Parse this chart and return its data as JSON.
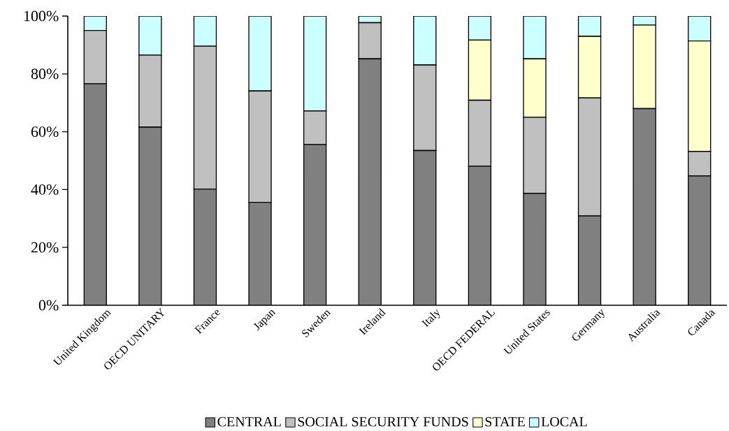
{
  "chart_data": {
    "type": "bar",
    "stacked": true,
    "categories": [
      "United Kingdom",
      "OECD UNITARY",
      "France",
      "Japan",
      "Sweden",
      "Ireland",
      "Italy",
      "OECD FEDERAL",
      "United States",
      "Germany",
      "Australia",
      "Canada"
    ],
    "series": [
      {
        "name": "CENTRAL",
        "color": "#808080",
        "values": [
          76.6,
          61.6,
          40.2,
          35.6,
          55.6,
          85.2,
          53.5,
          48.1,
          38.7,
          30.9,
          68.0,
          44.7
        ]
      },
      {
        "name": "SOCIAL SECURITY FUNDS",
        "color": "#c0c0c0",
        "values": [
          18.4,
          24.9,
          49.4,
          38.5,
          11.6,
          12.5,
          29.6,
          22.8,
          26.3,
          40.8,
          0,
          8.5
        ]
      },
      {
        "name": "STATE",
        "color": "#ffffcc",
        "values": [
          0,
          0,
          0,
          0,
          0,
          0,
          0,
          20.8,
          20.2,
          21.3,
          28.9,
          38.2
        ]
      },
      {
        "name": "LOCAL",
        "color": "#ccffff",
        "values": [
          5.0,
          13.5,
          10.4,
          25.9,
          32.8,
          2.3,
          16.9,
          8.3,
          14.8,
          7.0,
          3.1,
          8.6
        ]
      }
    ],
    "ylim": [
      0,
      100
    ],
    "yticks": [
      {
        "value": 0,
        "label": "0%"
      },
      {
        "value": 20,
        "label": "20%"
      },
      {
        "value": 40,
        "label": "40%"
      },
      {
        "value": 60,
        "label": "60%"
      },
      {
        "value": 80,
        "label": "80%"
      },
      {
        "value": 100,
        "label": "100%"
      }
    ],
    "legend": "bottom"
  }
}
